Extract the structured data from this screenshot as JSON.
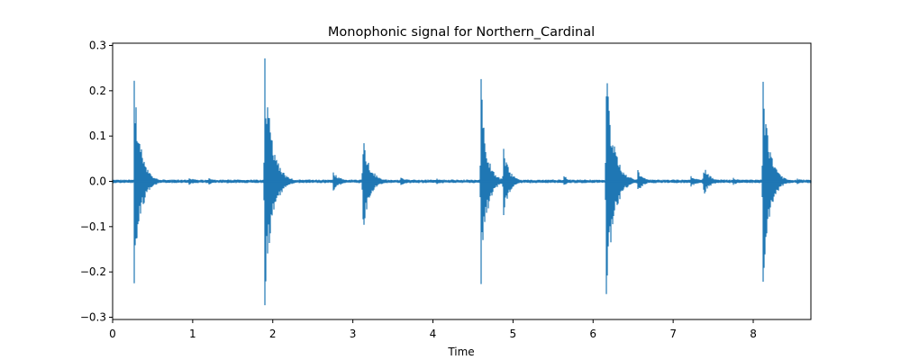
{
  "chart_data": {
    "type": "line",
    "title": "Monophonic signal for Northern_Cardinal",
    "xlabel": "Time",
    "ylabel": "",
    "xlim": [
      0,
      8.72
    ],
    "ylim": [
      -0.305,
      0.305
    ],
    "xticks": [
      0,
      1,
      2,
      3,
      4,
      5,
      6,
      7,
      8
    ],
    "yticks": [
      -0.3,
      -0.2,
      -0.1,
      0.0,
      0.1,
      0.2,
      0.3
    ],
    "ytick_labels": [
      "−0.3",
      "−0.2",
      "−0.1",
      "0.0",
      "0.1",
      "0.2",
      "0.3"
    ],
    "grid": false,
    "legend": "none",
    "line_color": "#1f77b4",
    "noise_floor": 0.004,
    "series": [
      {
        "events": [
          {
            "t": 0.27,
            "max": 0.222,
            "min": -0.225,
            "decay": 0.08
          },
          {
            "t": 0.95,
            "max": 0.008,
            "min": -0.008,
            "decay": 0.12
          },
          {
            "t": 1.2,
            "max": 0.007,
            "min": -0.007,
            "decay": 0.1
          },
          {
            "t": 1.9,
            "max": 0.276,
            "min": -0.278,
            "decay": 0.09
          },
          {
            "t": 2.75,
            "max": 0.023,
            "min": -0.022,
            "decay": 0.09
          },
          {
            "t": 3.12,
            "max": 0.12,
            "min": -0.122,
            "decay": 0.08
          },
          {
            "t": 3.6,
            "max": 0.008,
            "min": -0.008,
            "decay": 0.12
          },
          {
            "t": 4.05,
            "max": 0.006,
            "min": -0.006,
            "decay": 0.1
          },
          {
            "t": 4.6,
            "max": 0.232,
            "min": -0.233,
            "decay": 0.07
          },
          {
            "t": 4.88,
            "max": 0.075,
            "min": -0.078,
            "decay": 0.07
          },
          {
            "t": 5.63,
            "max": 0.017,
            "min": -0.015,
            "decay": 0.05
          },
          {
            "t": 6.16,
            "max": 0.271,
            "min": -0.273,
            "decay": 0.09
          },
          {
            "t": 6.55,
            "max": 0.031,
            "min": -0.029,
            "decay": 0.07
          },
          {
            "t": 7.22,
            "max": 0.012,
            "min": -0.012,
            "decay": 0.1
          },
          {
            "t": 7.37,
            "max": 0.04,
            "min": -0.036,
            "decay": 0.08
          },
          {
            "t": 7.75,
            "max": 0.008,
            "min": -0.008,
            "decay": 0.1
          },
          {
            "t": 8.12,
            "max": 0.23,
            "min": -0.232,
            "decay": 0.08
          },
          {
            "t": 8.55,
            "max": 0.006,
            "min": -0.006,
            "decay": 0.1
          }
        ]
      }
    ]
  }
}
